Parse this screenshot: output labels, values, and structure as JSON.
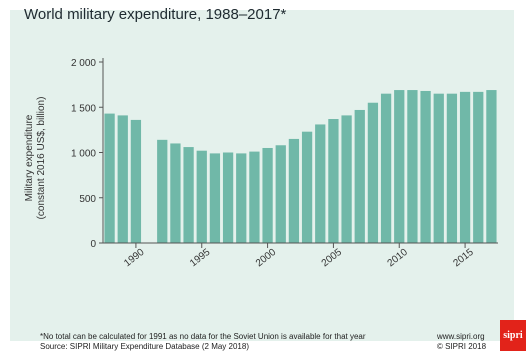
{
  "chart_data": {
    "type": "bar",
    "title": "World military expenditure, 1988–2017*",
    "ylabel_line1": "Military expenditure",
    "ylabel_line2": "(constant 2016 US$, billion)",
    "xlabel": "",
    "ylim": [
      0,
      2000
    ],
    "yticks": [
      0,
      500,
      1000,
      1500,
      2000
    ],
    "ytick_labels": [
      "0",
      "500",
      "1 000",
      "1 500",
      "2 000"
    ],
    "xlim": [
      1988,
      2017
    ],
    "xticks": [
      1990,
      1995,
      2000,
      2005,
      2010,
      2015
    ],
    "xtick_labels": [
      "1990",
      "1995",
      "2000",
      "2005",
      "2010",
      "2015"
    ],
    "x": [
      1988,
      1989,
      1990,
      1991,
      1992,
      1993,
      1994,
      1995,
      1996,
      1997,
      1998,
      1999,
      2000,
      2001,
      2002,
      2003,
      2004,
      2005,
      2006,
      2007,
      2008,
      2009,
      2010,
      2011,
      2012,
      2013,
      2014,
      2015,
      2016,
      2017
    ],
    "values": [
      1430,
      1410,
      1360,
      null,
      1140,
      1100,
      1060,
      1020,
      990,
      1000,
      990,
      1010,
      1050,
      1080,
      1150,
      1230,
      1310,
      1370,
      1410,
      1470,
      1550,
      1650,
      1690,
      1690,
      1680,
      1650,
      1650,
      1670,
      1670,
      1690
    ],
    "bar_color": "#70b8a8",
    "grid": false
  },
  "footer": {
    "footnote": "*No total can be calculated for 1991 as no data for the Soviet Union is available for that year",
    "source": "Source: SIPRI Military Expenditure Database (2 May 2018)",
    "url": "www.sipri.org",
    "copyright": "© SIPRI 2018",
    "logo": "sipri"
  }
}
